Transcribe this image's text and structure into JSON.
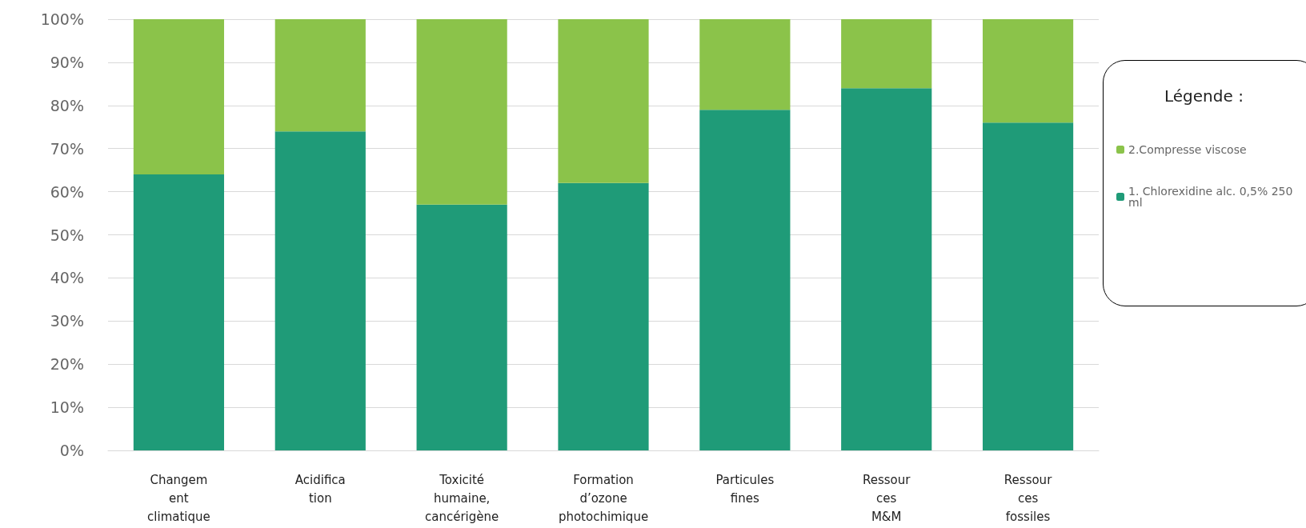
{
  "chart_data": {
    "type": "bar",
    "stacked": true,
    "categories": [
      "Changem\nent\nclimatique",
      "Acidifica\ntion",
      "Toxicité\nhumaine,\ncancérigène",
      "Formation\nd’ozone\nphotochimique",
      "Particules\nfines",
      "Ressour\nces\nM&M",
      "Ressour\nces\nfossiles"
    ],
    "series": [
      {
        "name": "1. Chlorexidine alc. 0,5% 250 ml",
        "color": "#1f9b78",
        "values": [
          64,
          74,
          57,
          62,
          79,
          84,
          76
        ]
      },
      {
        "name": "2.Compresse viscose",
        "color": "#8bc34a",
        "values": [
          36,
          26,
          43,
          38,
          21,
          16,
          24
        ]
      }
    ],
    "ylim": [
      0,
      100
    ],
    "yticks": [
      {
        "value": 0,
        "label": "0%"
      },
      {
        "value": 10,
        "label": "10%"
      },
      {
        "value": 20,
        "label": "20%"
      },
      {
        "value": 30,
        "label": "30%"
      },
      {
        "value": 40,
        "label": "40%"
      },
      {
        "value": 50,
        "label": "50%"
      },
      {
        "value": 60,
        "label": "60%"
      },
      {
        "value": 70,
        "label": "70%"
      },
      {
        "value": 80,
        "label": "80%"
      },
      {
        "value": 90,
        "label": "90%"
      },
      {
        "value": 100,
        "label": "100%"
      }
    ],
    "grid": "y",
    "legend": "right",
    "legend_title": "Légende :"
  }
}
